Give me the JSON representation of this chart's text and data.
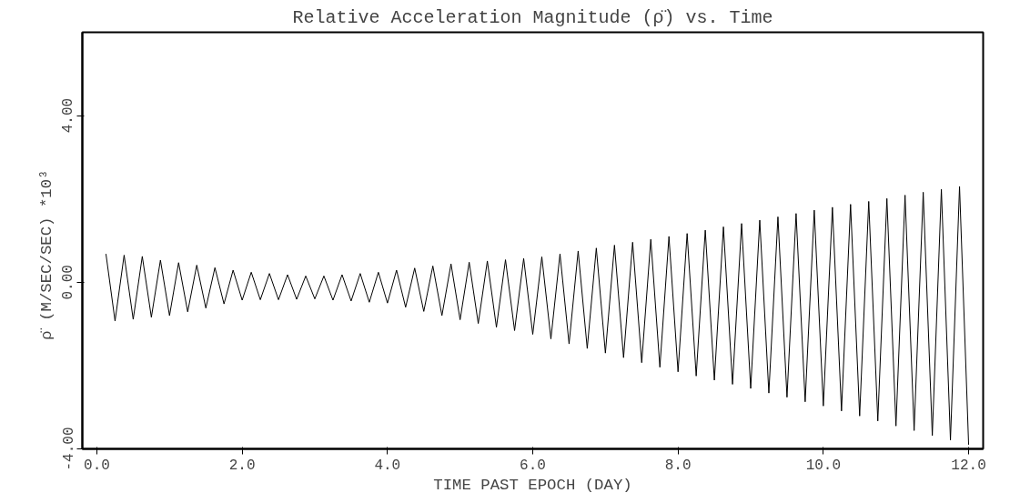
{
  "chart_data": {
    "type": "line",
    "title": "Relative Acceleration Magnitude (ρ̈) vs. Time",
    "xlabel": "TIME PAST EPOCH (DAY)",
    "ylabel": "ρ̈  (M/SEC/SEC)   *10³",
    "xlim": [
      -0.2,
      12.2
    ],
    "ylim": [
      -4,
      6
    ],
    "xticks": [
      {
        "value": 0,
        "label": "0.0"
      },
      {
        "value": 2,
        "label": "2.0"
      },
      {
        "value": 4,
        "label": "4.0"
      },
      {
        "value": 6,
        "label": "6.0"
      },
      {
        "value": 8,
        "label": "8.0"
      },
      {
        "value": 10,
        "label": "10.0"
      },
      {
        "value": 12,
        "label": "12.0"
      }
    ],
    "yticks": [
      {
        "value": -4,
        "label": "-4.00"
      },
      {
        "value": 0,
        "label": "0.00"
      },
      {
        "value": 4,
        "label": "4.00"
      }
    ],
    "grid": false,
    "marker": "none",
    "line_style": "solid",
    "x": [
      0.125,
      0.25,
      0.375,
      0.5,
      0.625,
      0.75,
      0.875,
      1.0,
      1.125,
      1.25,
      1.375,
      1.5,
      1.625,
      1.75,
      1.875,
      2.0,
      2.125,
      2.25,
      2.375,
      2.5,
      2.625,
      2.75,
      2.875,
      3.0,
      3.125,
      3.25,
      3.375,
      3.5,
      3.625,
      3.75,
      3.875,
      4.0,
      4.125,
      4.25,
      4.375,
      4.5,
      4.625,
      4.75,
      4.875,
      5.0,
      5.125,
      5.25,
      5.375,
      5.5,
      5.625,
      5.75,
      5.875,
      6.0,
      6.125,
      6.25,
      6.375,
      6.5,
      6.625,
      6.75,
      6.875,
      7.0,
      7.125,
      7.25,
      7.375,
      7.5,
      7.625,
      7.75,
      7.875,
      8.0,
      8.125,
      8.25,
      8.375,
      8.5,
      8.625,
      8.75,
      8.875,
      9.0,
      9.125,
      9.25,
      9.375,
      9.5,
      9.625,
      9.75,
      9.875,
      10.0,
      10.125,
      10.25,
      10.375,
      10.5,
      10.625,
      10.75,
      10.875,
      11.0,
      11.125,
      11.25,
      11.375,
      11.5,
      11.625,
      11.75,
      11.875,
      12.0
    ],
    "series": [
      {
        "color": "#000000",
        "values": [
          0.68,
          -0.93,
          0.65,
          -0.89,
          0.62,
          -0.84,
          0.53,
          -0.8,
          0.47,
          -0.71,
          0.41,
          -0.62,
          0.35,
          -0.52,
          0.29,
          -0.43,
          0.24,
          -0.42,
          0.21,
          -0.42,
          0.18,
          -0.41,
          0.15,
          -0.4,
          0.15,
          -0.43,
          0.18,
          -0.45,
          0.21,
          -0.48,
          0.24,
          -0.5,
          0.29,
          -0.6,
          0.34,
          -0.7,
          0.39,
          -0.8,
          0.44,
          -0.9,
          0.48,
          -0.99,
          0.51,
          -1.08,
          0.54,
          -1.16,
          0.57,
          -1.25,
          0.61,
          -1.36,
          0.68,
          -1.48,
          0.75,
          -1.59,
          0.82,
          -1.7,
          0.89,
          -1.81,
          0.96,
          -1.93,
          1.03,
          -2.04,
          1.1,
          -2.15,
          1.17,
          -2.25,
          1.25,
          -2.35,
          1.33,
          -2.45,
          1.41,
          -2.55,
          1.49,
          -2.66,
          1.57,
          -2.76,
          1.65,
          -2.87,
          1.73,
          -2.97,
          1.8,
          -3.09,
          1.87,
          -3.21,
          1.94,
          -3.33,
          2.01,
          -3.45,
          2.09,
          -3.56,
          2.16,
          -3.68,
          2.23,
          -3.79,
          2.3,
          -3.9
        ]
      }
    ]
  }
}
